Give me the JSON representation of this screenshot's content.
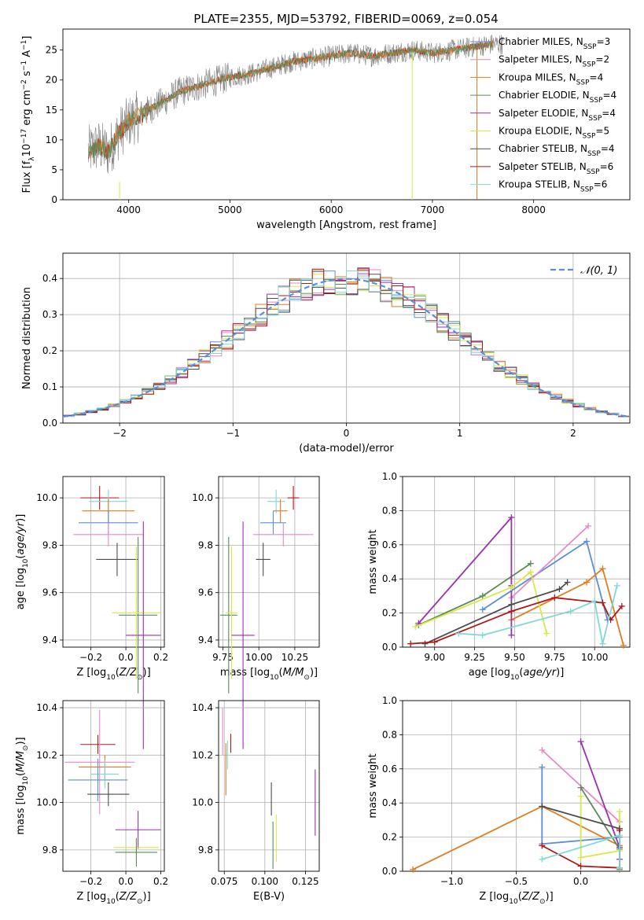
{
  "figure_title": "PLATE=2355, MJD=53792, FIBERID=0069, z=0.054",
  "colors": {
    "chabrier_miles": "#5b8fd6",
    "salpeter_miles": "#e48ac8",
    "kroupa_miles": "#e07b20",
    "chabrier_elodie": "#5a8a5a",
    "salpeter_elodie": "#9b2fb0",
    "kroupa_elodie": "#d6e84a",
    "chabrier_stelib": "#4d4d4d",
    "salpeter_stelib": "#b01818",
    "kroupa_stelib": "#7fd8d8",
    "normal_curve": "#5b8fd6",
    "grid": "#b0b0b0",
    "spectrum_data": "#808080"
  },
  "chart_data": [
    {
      "id": "spectrum",
      "type": "line",
      "xlabel": "wavelength [Angstrom, rest frame]",
      "ylabel": "Flux [f_λ 10^-17 erg cm^-2 s^-1 A^-1]",
      "xlim": [
        3350,
        8950
      ],
      "ylim": [
        0,
        28.5
      ],
      "xticks": [
        4000,
        5000,
        6000,
        7000,
        8000
      ],
      "yticks": [
        0,
        5,
        10,
        15,
        20,
        25
      ],
      "grid": false,
      "legend_position": "right",
      "spectrum_envelope": {
        "x": [
          3600,
          3700,
          3800,
          3900,
          4000,
          4100,
          4200,
          4300,
          4400,
          4500,
          4600,
          4800,
          5000,
          5200,
          5400,
          5600,
          5800,
          6000,
          6200,
          6400,
          6600,
          6800,
          7000,
          7200,
          7400,
          7600,
          7700
        ],
        "y": [
          8,
          9,
          8,
          11,
          13,
          14,
          15,
          16,
          17,
          18,
          18.5,
          19.5,
          20.5,
          21,
          22,
          23,
          23.5,
          24,
          24.5,
          24,
          24.5,
          25,
          24.5,
          25,
          25.5,
          26,
          26
        ]
      },
      "series": [
        {
          "name": "Chabrier MILES, N_SSP=3",
          "name_main": "Chabrier MILES, N",
          "name_sub": "SSP",
          "name_tail": "=3",
          "color_key": "chabrier_miles"
        },
        {
          "name": "Salpeter MILES, N_SSP=2",
          "name_main": "Salpeter MILES, N",
          "name_sub": "SSP",
          "name_tail": "=2",
          "color_key": "salpeter_miles"
        },
        {
          "name": "Kroupa MILES, N_SSP=4",
          "name_main": "Kroupa MILES, N",
          "name_sub": "SSP",
          "name_tail": "=4",
          "color_key": "kroupa_miles"
        },
        {
          "name": "Chabrier ELODIE, N_SSP=4",
          "name_main": "Chabrier ELODIE, N",
          "name_sub": "SSP",
          "name_tail": "=4",
          "color_key": "chabrier_elodie"
        },
        {
          "name": "Salpeter ELODIE, N_SSP=4",
          "name_main": "Salpeter ELODIE, N",
          "name_sub": "SSP",
          "name_tail": "=4",
          "color_key": "salpeter_elodie"
        },
        {
          "name": "Kroupa ELODIE, N_SSP=5",
          "name_main": "Kroupa ELODIE, N",
          "name_sub": "SSP",
          "name_tail": "=5",
          "color_key": "kroupa_elodie"
        },
        {
          "name": "Chabrier STELIB, N_SSP=4",
          "name_main": "Chabrier STELIB, N",
          "name_sub": "SSP",
          "name_tail": "=4",
          "color_key": "chabrier_stelib"
        },
        {
          "name": "Salpeter STELIB, N_SSP=6",
          "name_main": "Salpeter STELIB, N",
          "name_sub": "SSP",
          "name_tail": "=6",
          "color_key": "salpeter_stelib"
        },
        {
          "name": "Kroupa STELIB, N_SSP=6",
          "name_main": "Kroupa STELIB, N",
          "name_sub": "SSP",
          "name_tail": "=6",
          "color_key": "kroupa_stelib"
        }
      ]
    },
    {
      "id": "residuals",
      "type": "line",
      "xlabel": "(data-model)/error",
      "ylabel": "Normed distribution",
      "xlim": [
        -2.5,
        2.5
      ],
      "ylim": [
        0,
        0.47
      ],
      "xticks": [
        -2,
        -1,
        0,
        1,
        2
      ],
      "xtick_labels": [
        "−2",
        "−1",
        "0",
        "1",
        "2"
      ],
      "yticks": [
        0.0,
        0.1,
        0.2,
        0.3,
        0.4
      ],
      "ytick_labels": [
        "0.0",
        "0.1",
        "0.2",
        "0.3",
        "0.4"
      ],
      "grid": true,
      "legend_position": "top-right",
      "legend_label": "𝒩(0, 1)",
      "normal_curve": {
        "mean": 0,
        "sigma": 1
      }
    },
    {
      "id": "age_vs_Z",
      "type": "scatter",
      "xlabel": "Z [log10(Z/Z⊙)]",
      "ylabel": "age [log10(age/yr)]",
      "xlim": [
        -0.36,
        0.22
      ],
      "ylim": [
        9.37,
        10.09
      ],
      "xticks": [
        -0.2,
        0.0,
        0.2
      ],
      "xtick_labels": [
        "−0.2",
        "0.0",
        "0.2"
      ],
      "yticks": [
        9.4,
        9.6,
        9.8,
        10.0
      ],
      "ytick_labels": [
        "9.4",
        "9.6",
        "9.8",
        "10.0"
      ],
      "grid": true,
      "points": [
        {
          "color_key": "salpeter_stelib",
          "x": -0.15,
          "y": 10.0,
          "xerr": 0.11,
          "yerr": 0.05
        },
        {
          "color_key": "kroupa_stelib",
          "x": -0.1,
          "y": 9.985,
          "xerr": 0.11,
          "yerr": 0.05
        },
        {
          "color_key": "kroupa_miles",
          "x": -0.1,
          "y": 9.945,
          "xerr": 0.15,
          "yerr": 0.05
        },
        {
          "color_key": "chabrier_miles",
          "x": -0.1,
          "y": 9.895,
          "xerr": 0.17,
          "yerr": 0.05
        },
        {
          "color_key": "salpeter_miles",
          "x": -0.1,
          "y": 9.845,
          "xerr": 0.2,
          "yerr": 0.05
        },
        {
          "color_key": "chabrier_stelib",
          "x": -0.05,
          "y": 9.74,
          "xerr": 0.12,
          "yerr": 0.07
        },
        {
          "color_key": "chabrier_elodie",
          "x": 0.07,
          "y": 9.505,
          "xerr": 0.11,
          "yerr": 0.33
        },
        {
          "color_key": "kroupa_elodie",
          "x": 0.06,
          "y": 9.515,
          "xerr": 0.14,
          "yerr": 0.28
        },
        {
          "color_key": "salpeter_elodie",
          "x": 0.1,
          "y": 9.42,
          "xerr": 0.1,
          "yerr": 0.48
        }
      ]
    },
    {
      "id": "age_vs_mass",
      "type": "scatter",
      "xlabel": "mass [log10(M/M⊙)]",
      "ylabel": "",
      "xlim": [
        9.72,
        10.42
      ],
      "ylim": [
        9.37,
        10.09
      ],
      "xticks": [
        9.75,
        10.0,
        10.25
      ],
      "xtick_labels": [
        "9.75",
        "10.00",
        "10.25"
      ],
      "yticks": [
        9.4,
        9.6,
        9.8,
        10.0
      ],
      "ytick_labels": [
        "9.4",
        "9.6",
        "9.8",
        "10.0"
      ],
      "grid": true,
      "points": [
        {
          "color_key": "salpeter_stelib",
          "x": 10.24,
          "y": 10.0,
          "xerr": 0.04,
          "yerr": 0.05
        },
        {
          "color_key": "kroupa_stelib",
          "x": 10.12,
          "y": 9.985,
          "xerr": 0.06,
          "yerr": 0.05
        },
        {
          "color_key": "kroupa_miles",
          "x": 10.15,
          "y": 9.945,
          "xerr": 0.05,
          "yerr": 0.05
        },
        {
          "color_key": "chabrier_miles",
          "x": 10.1,
          "y": 9.895,
          "xerr": 0.09,
          "yerr": 0.05
        },
        {
          "color_key": "salpeter_miles",
          "x": 10.17,
          "y": 9.845,
          "xerr": 0.21,
          "yerr": 0.05
        },
        {
          "color_key": "chabrier_stelib",
          "x": 10.03,
          "y": 9.74,
          "xerr": 0.05,
          "yerr": 0.07
        },
        {
          "color_key": "chabrier_elodie",
          "x": 9.79,
          "y": 9.505,
          "xerr": 0.06,
          "yerr": 0.33
        },
        {
          "color_key": "kroupa_elodie",
          "x": 9.81,
          "y": 9.515,
          "xerr": 0.04,
          "yerr": 0.28
        },
        {
          "color_key": "salpeter_elodie",
          "x": 9.89,
          "y": 9.42,
          "xerr": 0.08,
          "yerr": 0.48
        }
      ]
    },
    {
      "id": "mass_weight_vs_age",
      "type": "line",
      "xlabel": "age [log10(age/yr)]",
      "ylabel": "mass weight",
      "xlim": [
        8.8,
        10.22
      ],
      "ylim": [
        0,
        1.0
      ],
      "xticks": [
        9.0,
        9.25,
        9.5,
        9.75,
        10.0
      ],
      "xtick_labels": [
        "9.00",
        "9.25",
        "9.50",
        "9.75",
        "10.00"
      ],
      "yticks": [
        0.0,
        0.2,
        0.4,
        0.6,
        0.8,
        1.0
      ],
      "ytick_labels": [
        "0.0",
        "0.2",
        "0.4",
        "0.6",
        "0.8",
        "1.0"
      ],
      "grid": true,
      "series": [
        {
          "color_key": "chabrier_miles",
          "x": [
            9.3,
            9.95,
            10.08
          ],
          "y": [
            0.22,
            0.62,
            0.16
          ]
        },
        {
          "color_key": "salpeter_miles",
          "x": [
            9.48,
            9.96
          ],
          "y": [
            0.29,
            0.71
          ]
        },
        {
          "color_key": "kroupa_miles",
          "x": [
            9.48,
            9.95,
            10.05,
            10.18
          ],
          "y": [
            0.16,
            0.38,
            0.46,
            0.01
          ]
        },
        {
          "color_key": "chabrier_elodie",
          "x": [
            8.9,
            9.3,
            9.6
          ],
          "y": [
            0.13,
            0.3,
            0.49
          ]
        },
        {
          "color_key": "salpeter_elodie",
          "x": [
            8.9,
            9.48,
            9.48,
            9.48
          ],
          "y": [
            0.14,
            0.76,
            0.36,
            0.07
          ]
        },
        {
          "color_key": "kroupa_elodie",
          "x": [
            8.88,
            9.48,
            9.6,
            9.7
          ],
          "y": [
            0.12,
            0.35,
            0.44,
            0.08
          ]
        },
        {
          "color_key": "chabrier_stelib",
          "x": [
            8.94,
            9.48,
            9.78,
            9.83
          ],
          "y": [
            0.02,
            0.25,
            0.34,
            0.38
          ]
        },
        {
          "color_key": "salpeter_stelib",
          "x": [
            8.85,
            9.0,
            9.48,
            9.75,
            10.05,
            10.1,
            10.17
          ],
          "y": [
            0.02,
            0.03,
            0.21,
            0.29,
            0.26,
            0.16,
            0.24
          ]
        },
        {
          "color_key": "kroupa_stelib",
          "x": [
            9.15,
            9.3,
            9.85,
            10.0,
            10.05,
            10.14
          ],
          "y": [
            0.08,
            0.07,
            0.21,
            0.27,
            0.02,
            0.36
          ]
        }
      ]
    },
    {
      "id": "mass_vs_Z",
      "type": "scatter",
      "xlabel": "Z [log10(Z/Z⊙)]",
      "ylabel": "mass [log10(M/M⊙)]",
      "xlim": [
        -0.36,
        0.22
      ],
      "ylim": [
        9.71,
        10.43
      ],
      "xticks": [
        -0.2,
        0.0,
        0.2
      ],
      "xtick_labels": [
        "−0.2",
        "0.0",
        "0.2"
      ],
      "yticks": [
        9.8,
        10.0,
        10.2,
        10.4
      ],
      "ytick_labels": [
        "9.8",
        "10.0",
        "10.2",
        "10.4"
      ],
      "grid": true,
      "points": [
        {
          "color_key": "salpeter_stelib",
          "x": -0.16,
          "y": 10.245,
          "xerr": 0.1,
          "yerr": 0.04
        },
        {
          "color_key": "salpeter_miles",
          "x": -0.15,
          "y": 10.17,
          "xerr": 0.2,
          "yerr": 0.22
        },
        {
          "color_key": "kroupa_miles",
          "x": -0.12,
          "y": 10.15,
          "xerr": 0.15,
          "yerr": 0.05
        },
        {
          "color_key": "kroupa_stelib",
          "x": -0.12,
          "y": 10.12,
          "xerr": 0.08,
          "yerr": 0.06
        },
        {
          "color_key": "chabrier_miles",
          "x": -0.16,
          "y": 10.095,
          "xerr": 0.17,
          "yerr": 0.09
        },
        {
          "color_key": "chabrier_stelib",
          "x": -0.1,
          "y": 10.035,
          "xerr": 0.12,
          "yerr": 0.05
        },
        {
          "color_key": "salpeter_elodie",
          "x": 0.07,
          "y": 9.885,
          "xerr": 0.13,
          "yerr": 0.08
        },
        {
          "color_key": "kroupa_elodie",
          "x": 0.06,
          "y": 9.81,
          "xerr": 0.13,
          "yerr": 0.04
        },
        {
          "color_key": "chabrier_elodie",
          "x": 0.06,
          "y": 9.79,
          "xerr": 0.12,
          "yerr": 0.06
        }
      ]
    },
    {
      "id": "mass_vs_ebv",
      "type": "scatter",
      "xlabel": "E(B-V)",
      "ylabel": "",
      "xlim": [
        0.0715,
        0.1335
      ],
      "ylim": [
        9.71,
        10.43
      ],
      "xticks": [
        0.075,
        0.1,
        0.125
      ],
      "xtick_labels": [
        "0.075",
        "0.100",
        "0.125"
      ],
      "yticks": [
        9.8,
        10.0,
        10.2,
        10.4
      ],
      "ytick_labels": [
        "9.8",
        "10.0",
        "10.2",
        "10.4"
      ],
      "grid": true,
      "points": [
        {
          "color_key": "salpeter_miles",
          "x": 0.074,
          "y": 10.3,
          "xerr": 0,
          "yerr": 0.1
        },
        {
          "color_key": "kroupa_miles",
          "x": 0.076,
          "y": 10.14,
          "xerr": 0,
          "yerr": 0.11
        },
        {
          "color_key": "kroupa_stelib",
          "x": 0.077,
          "y": 10.2,
          "xerr": 0,
          "yerr": 0.06
        },
        {
          "color_key": "salpeter_stelib",
          "x": 0.079,
          "y": 10.25,
          "xerr": 0,
          "yerr": 0.04
        },
        {
          "color_key": "chabrier_stelib",
          "x": 0.104,
          "y": 10.015,
          "xerr": 0,
          "yerr": 0.07
        },
        {
          "color_key": "chabrier_elodie",
          "x": 0.105,
          "y": 9.82,
          "xerr": 0,
          "yerr": 0.1
        },
        {
          "color_key": "kroupa_elodie",
          "x": 0.107,
          "y": 9.85,
          "xerr": 0,
          "yerr": 0.1
        },
        {
          "color_key": "salpeter_elodie",
          "x": 0.131,
          "y": 10.0,
          "xerr": 0,
          "yerr": 0.14
        }
      ]
    },
    {
      "id": "mass_weight_vs_Z",
      "type": "line",
      "xlabel": "Z [log10(Z/Z⊙)]",
      "ylabel": "mass weight",
      "xlim": [
        -1.38,
        0.38
      ],
      "ylim": [
        0,
        1.0
      ],
      "xticks": [
        -1.0,
        -0.5,
        0.0
      ],
      "xtick_labels": [
        "−1.0",
        "−0.5",
        "0.0"
      ],
      "yticks": [
        0.0,
        0.2,
        0.4,
        0.6,
        0.8,
        1.0
      ],
      "ytick_labels": [
        "0.0",
        "0.2",
        "0.4",
        "0.6",
        "0.8",
        "1.0"
      ],
      "grid": true,
      "series": [
        {
          "color_key": "chabrier_miles",
          "x": [
            -0.3,
            -0.3,
            -0.3,
            0.3,
            0.3
          ],
          "y": [
            0.61,
            0.38,
            0.16,
            0.2,
            0.15
          ]
        },
        {
          "color_key": "salpeter_miles",
          "x": [
            -0.3,
            0.3
          ],
          "y": [
            0.71,
            0.29
          ]
        },
        {
          "color_key": "kroupa_miles",
          "x": [
            -1.3,
            -0.3,
            0.3
          ],
          "y": [
            0.01,
            0.38,
            0.15
          ]
        },
        {
          "color_key": "chabrier_elodie",
          "x": [
            0.0,
            0.3,
            0.3
          ],
          "y": [
            0.49,
            0.13,
            0.01
          ]
        },
        {
          "color_key": "salpeter_elodie",
          "x": [
            0.0,
            0.3,
            0.3
          ],
          "y": [
            0.76,
            0.14,
            0.07
          ]
        },
        {
          "color_key": "kroupa_elodie",
          "x": [
            0.0,
            0.0,
            0.3,
            0.3
          ],
          "y": [
            0.44,
            0.08,
            0.12,
            0.35
          ]
        },
        {
          "color_key": "chabrier_stelib",
          "x": [
            -0.3,
            0.3,
            0.3
          ],
          "y": [
            0.38,
            0.25,
            0.02
          ]
        },
        {
          "color_key": "salpeter_stelib",
          "x": [
            -0.3,
            0.0,
            0.3,
            0.3
          ],
          "y": [
            0.15,
            0.03,
            0.02,
            0.24
          ]
        },
        {
          "color_key": "kroupa_stelib",
          "x": [
            -0.3,
            0.3,
            0.3
          ],
          "y": [
            0.07,
            0.21,
            0.02
          ]
        }
      ]
    }
  ]
}
